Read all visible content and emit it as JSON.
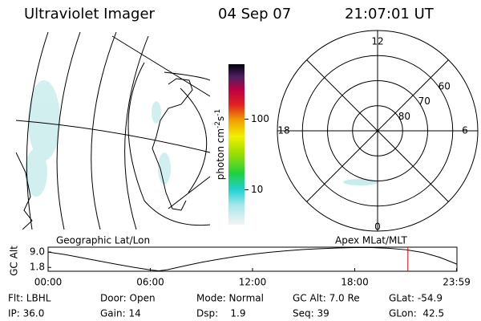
{
  "header": {
    "title": "Ultraviolet Imager",
    "date": "04 Sep 07",
    "time": "21:07:01 UT"
  },
  "colorbar": {
    "label": "photon cm",
    "sup1": "-2",
    "unit2": "s",
    "sup2": "-1",
    "clim": [
      3.2,
      600
    ],
    "log_scale": true,
    "ticks": [
      10,
      100
    ]
  },
  "polar": {
    "lat_min": 50,
    "lat_rings": [
      80,
      70,
      60
    ],
    "mlt_labels": {
      "top": "12",
      "right": "6",
      "bottom": "0",
      "left": "18"
    }
  },
  "chart_data": {
    "type": "line",
    "left_title": "Geographic Lat/Lon",
    "right_title": "Apex MLat/MLT",
    "ylabel": "GC Alt",
    "x": [
      0,
      1,
      2,
      3,
      4,
      5,
      6,
      6.5,
      7,
      8,
      9,
      10,
      11,
      12,
      13,
      14,
      15,
      16,
      17,
      18,
      19,
      20,
      21,
      22,
      23,
      23.98
    ],
    "values": [
      9.0,
      7.8,
      6.3,
      4.8,
      3.3,
      1.9,
      0.6,
      0.2,
      0.7,
      2.5,
      4.2,
      5.6,
      6.9,
      8.0,
      8.9,
      9.6,
      10.2,
      10.6,
      10.9,
      11.1,
      11.1,
      10.8,
      10.1,
      8.8,
      6.5,
      3.4
    ],
    "color": "#000000",
    "xlim": [
      0,
      24
    ],
    "ylim": [
      0,
      11.3
    ],
    "xticks": [
      {
        "value": 0,
        "label": "00:00"
      },
      {
        "value": 6,
        "label": "06:00"
      },
      {
        "value": 12,
        "label": "12:00"
      },
      {
        "value": 18,
        "label": "18:00"
      },
      {
        "value": 23.98,
        "label": "23:59"
      }
    ],
    "yticks": [
      {
        "value": 9.0,
        "label": "9.0"
      },
      {
        "value": 1.8,
        "label": "1.8"
      }
    ],
    "current_time": 21.12,
    "marker_color": "#e00000"
  },
  "footer": {
    "rows": [
      [
        "Flt: LBHL",
        "Door: Open",
        "Mode: Normal",
        "GC Alt: 7.0 Re",
        "GLat: -54.9"
      ],
      [
        "IP: 36.0",
        "Gain: 14",
        "Dsp:    1.9",
        "Seq: 39",
        "GLon:  42.5"
      ]
    ]
  }
}
